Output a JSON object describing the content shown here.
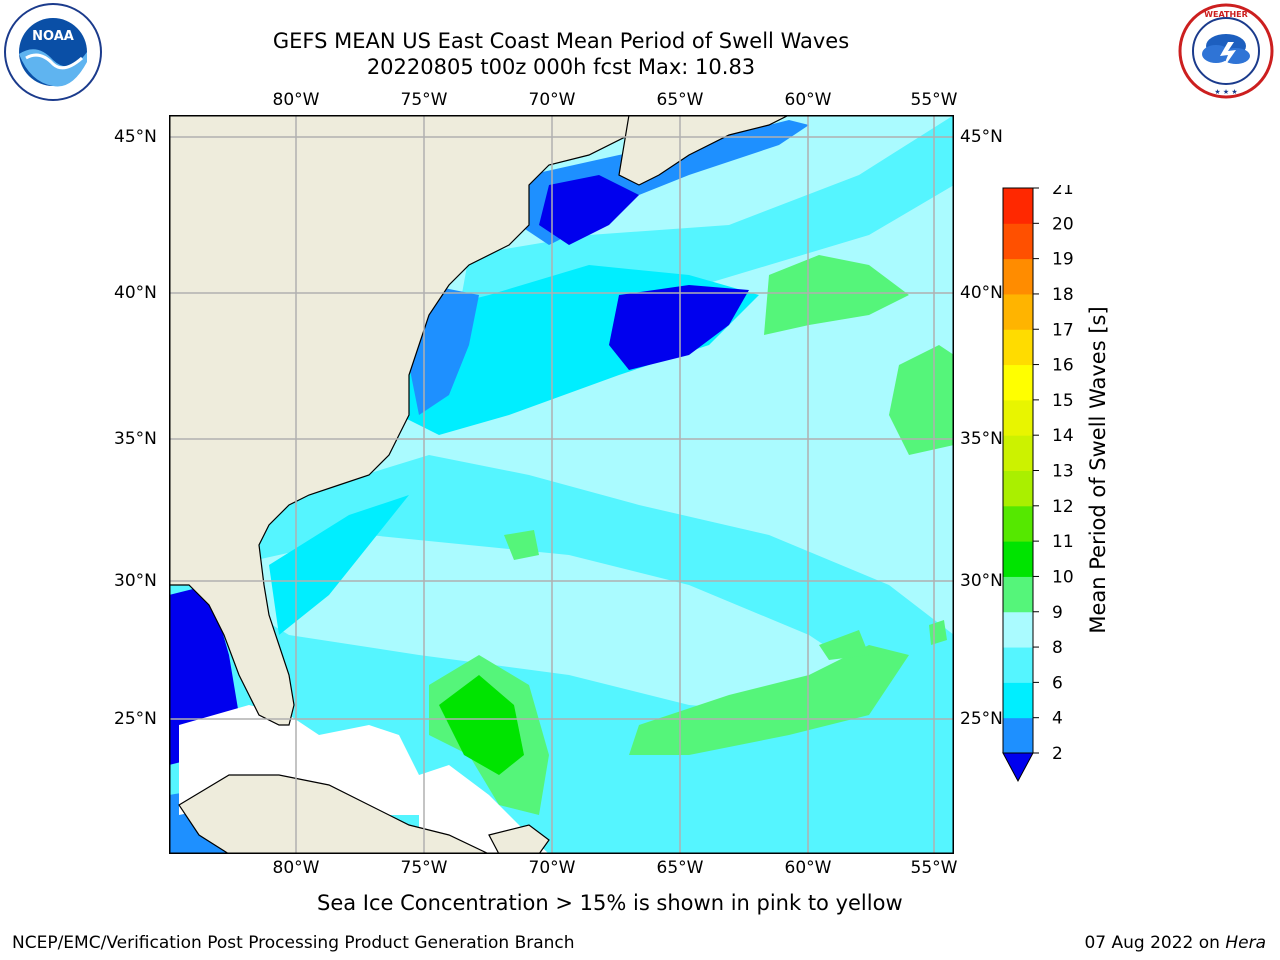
{
  "title": {
    "line1": "GEFS MEAN US East Coast Mean Period of Swell Waves",
    "line2": "20220805 t00z 000h fcst   Max: 10.83"
  },
  "map": {
    "lon_labels": [
      "80°W",
      "75°W",
      "70°W",
      "65°W",
      "60°W",
      "55°W"
    ],
    "lat_labels": [
      "45°N",
      "40°N",
      "35°N",
      "30°N",
      "25°N"
    ],
    "grid": true,
    "colors": {
      "land": "#eeecdc",
      "frame": "#000000",
      "grid": "#b0b0b0"
    }
  },
  "colorbar": {
    "label": "Mean Period of Swell Waves [s]",
    "ticks": [
      "2",
      "4",
      "6",
      "8",
      "9",
      "10",
      "11",
      "12",
      "13",
      "14",
      "15",
      "16",
      "17",
      "18",
      "19",
      "20",
      "21"
    ],
    "colors": [
      "#0000ee",
      "#1e90ff",
      "#00eeff",
      "#55f5ff",
      "#aafbff",
      "#55f57a",
      "#00e400",
      "#55e800",
      "#aaef00",
      "#ccf200",
      "#e8f500",
      "#ffff00",
      "#ffdc00",
      "#ffb400",
      "#ff8c00",
      "#ff5000",
      "#ff2800",
      "#ff0000"
    ],
    "extend_min_color": "#0000ee"
  },
  "logos": {
    "left": {
      "icon": "noaa-logo-icon",
      "text": "NOAA"
    },
    "right": {
      "icon": "nws-logo-icon",
      "text": "NATIONAL WEATHER SERVICE"
    }
  },
  "note": "Sea Ice Concentration > 15% is shown in pink to yellow",
  "footer": {
    "left": "NCEP/EMC/Verification Post Processing Product Generation Branch",
    "right_date": "07 Aug 2022 on ",
    "right_machine": "Hera"
  }
}
